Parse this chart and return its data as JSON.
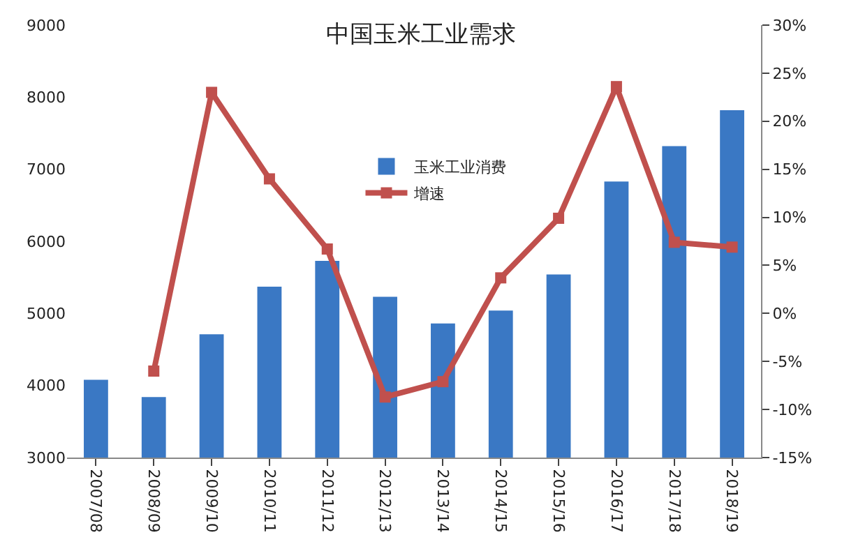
{
  "chart_data": {
    "type": "bar",
    "title": "中国玉米工业需求",
    "categories": [
      "2007/08",
      "2008/09",
      "2009/10",
      "2010/11",
      "2011/12",
      "2012/13",
      "2013/14",
      "2014/15",
      "2015/16",
      "2016/17",
      "2017/18",
      "2018/19"
    ],
    "series": [
      {
        "name": "玉米工业消费",
        "color": "#3a78c4",
        "values": [
          4080,
          3840,
          4710,
          5370,
          5730,
          5230,
          4860,
          5040,
          5540,
          6830,
          7320,
          7820
        ]
      },
      {
        "name": "增速",
        "type": "line",
        "axis": "y2",
        "color": "#c0504d",
        "marker": "square",
        "values": [
          null,
          -6,
          23,
          14,
          6.7,
          -8.7,
          -7.1,
          3.7,
          9.9,
          23.6,
          7.4,
          6.9
        ]
      }
    ],
    "ylim": [
      3000,
      9000
    ],
    "yticks": [
      3000,
      4000,
      5000,
      6000,
      7000,
      8000,
      9000
    ],
    "y2lim": [
      -15,
      30
    ],
    "y2ticks": [
      {
        "value": -15,
        "label": "-15%"
      },
      {
        "value": -10,
        "label": "-10%"
      },
      {
        "value": -5,
        "label": "-5%"
      },
      {
        "value": 0,
        "label": "0%"
      },
      {
        "value": 5,
        "label": "5%"
      },
      {
        "value": 10,
        "label": "10%"
      },
      {
        "value": 15,
        "label": "15%"
      },
      {
        "value": 20,
        "label": "20%"
      },
      {
        "value": 25,
        "label": "25%"
      },
      {
        "value": 30,
        "label": "30%"
      }
    ],
    "legend": "top"
  }
}
